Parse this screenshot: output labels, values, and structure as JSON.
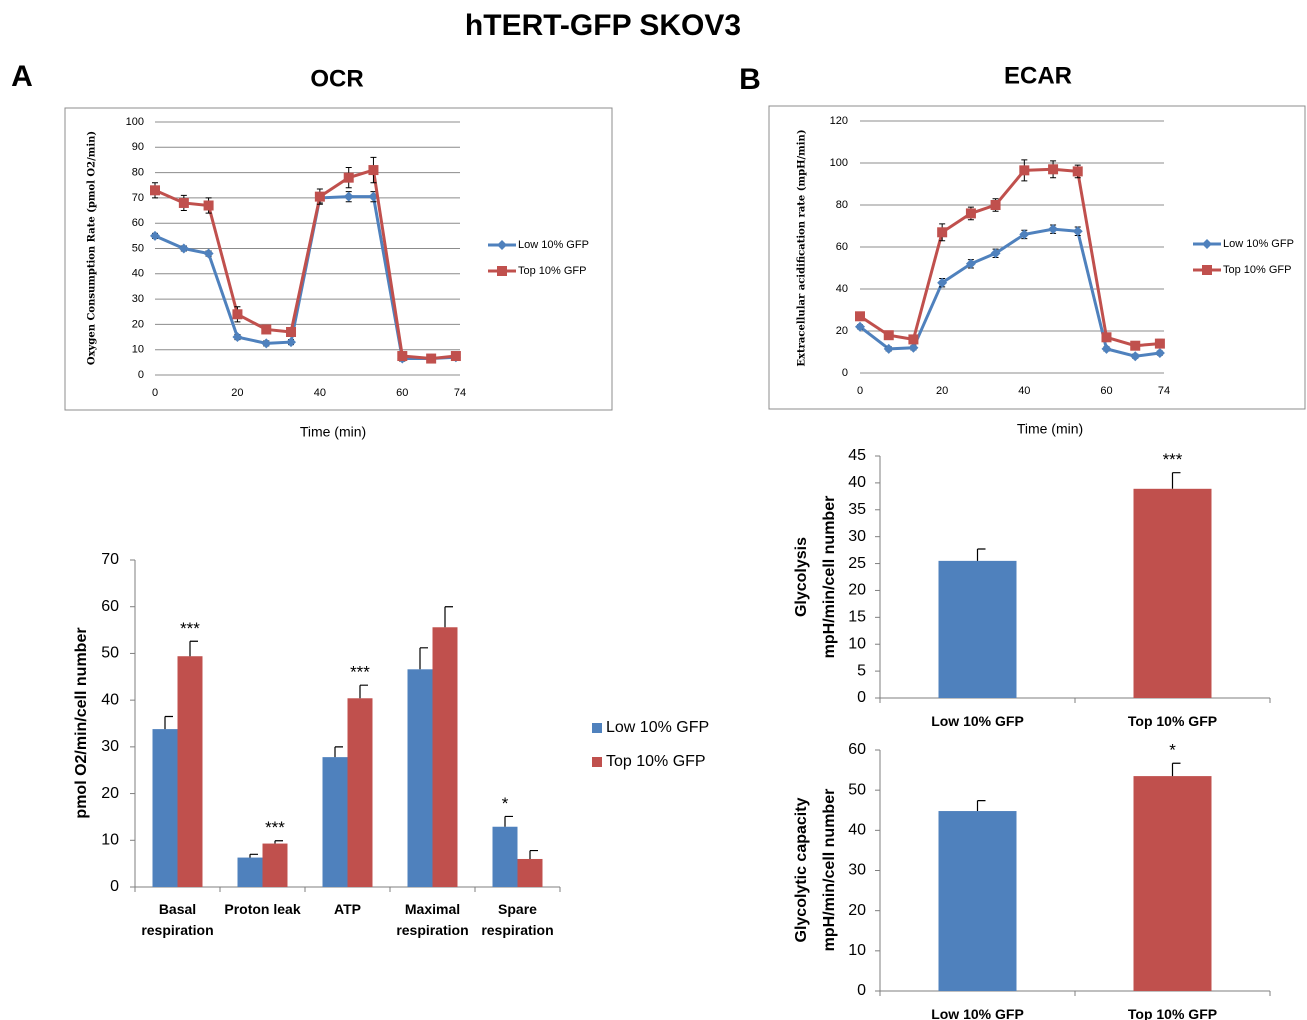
{
  "title": "hTERT-GFP SKOV3",
  "panels": [
    "A",
    "B"
  ],
  "chart_data": [
    {
      "type": "line",
      "title": "OCR",
      "ylabel": "Oxygen Consumption Rate (pmol O2/min)",
      "xlabel": "Time (min)",
      "x": [
        0,
        7,
        13,
        20,
        27,
        33,
        40,
        47,
        53,
        60,
        67,
        73
      ],
      "xlim": [
        0,
        74
      ],
      "xticks": [
        0,
        20,
        40,
        60,
        74
      ],
      "ylim": [
        0,
        100
      ],
      "yticks": [
        0,
        10,
        20,
        30,
        40,
        50,
        60,
        70,
        80,
        90,
        100
      ],
      "grid": true,
      "series": [
        {
          "name": "Low 10% GFP",
          "color": "#4f81bd",
          "marker": "diamond",
          "values": [
            55,
            50,
            48,
            15,
            12.5,
            13,
            70,
            70.5,
            70.5,
            6.5,
            6.5,
            7
          ],
          "errors": [
            1,
            1,
            1,
            1,
            1,
            1,
            2,
            2,
            2,
            1,
            1,
            1
          ]
        },
        {
          "name": "Top 10% GFP",
          "color": "#c0504d",
          "marker": "square",
          "values": [
            73,
            68,
            67,
            24,
            18,
            17,
            70.5,
            78,
            81,
            7.5,
            6.5,
            7.5
          ],
          "errors": [
            3,
            3,
            3,
            3,
            1,
            1,
            3,
            4,
            5,
            1,
            1,
            1
          ]
        }
      ]
    },
    {
      "type": "line",
      "title": "ECAR",
      "ylabel": "Extracellular acidification rate (mpH/min)",
      "xlabel": "Time (min)",
      "x": [
        0,
        7,
        13,
        20,
        27,
        33,
        40,
        47,
        53,
        60,
        67,
        73
      ],
      "xlim": [
        0,
        74
      ],
      "xticks": [
        0,
        20,
        40,
        60,
        74
      ],
      "ylim": [
        0,
        120
      ],
      "yticks": [
        0,
        20,
        40,
        60,
        80,
        100,
        120
      ],
      "grid": true,
      "series": [
        {
          "name": "Low 10% GFP",
          "color": "#4f81bd",
          "marker": "diamond",
          "values": [
            22,
            11.5,
            12,
            43,
            52,
            57,
            66,
            68.5,
            67.5,
            11.5,
            8,
            9.5
          ],
          "errors": [
            1,
            1,
            1,
            2,
            2,
            2,
            2,
            2,
            2,
            1,
            1,
            1
          ]
        },
        {
          "name": "Top 10% GFP",
          "color": "#c0504d",
          "marker": "square",
          "values": [
            27,
            18,
            16,
            67,
            76,
            80,
            96.5,
            97,
            96,
            17,
            13,
            14
          ],
          "errors": [
            2,
            2,
            2,
            4,
            3,
            3,
            5,
            4,
            3,
            2,
            2,
            2
          ]
        }
      ]
    },
    {
      "type": "bar",
      "ylabel": "pmol O2/min/cell number",
      "categories": [
        "Basal respiration",
        "Proton leak",
        "ATP",
        "Maximal respiration",
        "Spare respiration"
      ],
      "ylim": [
        0,
        70
      ],
      "yticks": [
        0,
        10,
        20,
        30,
        40,
        50,
        60,
        70
      ],
      "series": [
        {
          "name": "Low 10% GFP",
          "color": "#4f81bd",
          "values": [
            33.8,
            6.3,
            27.8,
            46.6,
            12.9
          ],
          "errors": [
            2.7,
            0.7,
            2.2,
            4.6,
            2.2
          ],
          "significance": [
            null,
            null,
            null,
            null,
            "*"
          ]
        },
        {
          "name": "Top 10% GFP",
          "color": "#c0504d",
          "values": [
            49.4,
            9.3,
            40.4,
            55.6,
            6
          ],
          "errors": [
            3.2,
            0.6,
            2.8,
            4.4,
            1.8
          ],
          "significance": [
            "***",
            "***",
            "***",
            null,
            null
          ]
        }
      ]
    },
    {
      "type": "bar",
      "ylabel": [
        "Glycolysis",
        "mpH/min/cell number"
      ],
      "categories": [
        "Low 10% GFP",
        "Top 10% GFP"
      ],
      "ylim": [
        0,
        45
      ],
      "yticks": [
        0,
        5,
        10,
        15,
        20,
        25,
        30,
        35,
        40,
        45
      ],
      "series": [
        {
          "colors": [
            "#4f81bd",
            "#c0504d"
          ],
          "values": [
            25.5,
            38.9
          ],
          "errors": [
            2.2,
            3.0
          ],
          "significance": [
            null,
            "***"
          ]
        }
      ]
    },
    {
      "type": "bar",
      "ylabel": [
        "Glycolytic capacity",
        "mpH/min/cell number"
      ],
      "categories": [
        "Low 10% GFP",
        "Top 10% GFP"
      ],
      "ylim": [
        0,
        60
      ],
      "yticks": [
        0,
        10,
        20,
        30,
        40,
        50,
        60
      ],
      "series": [
        {
          "colors": [
            "#4f81bd",
            "#c0504d"
          ],
          "values": [
            44.8,
            53.5
          ],
          "errors": [
            2.6,
            3.2
          ],
          "significance": [
            null,
            "*"
          ]
        }
      ]
    }
  ]
}
